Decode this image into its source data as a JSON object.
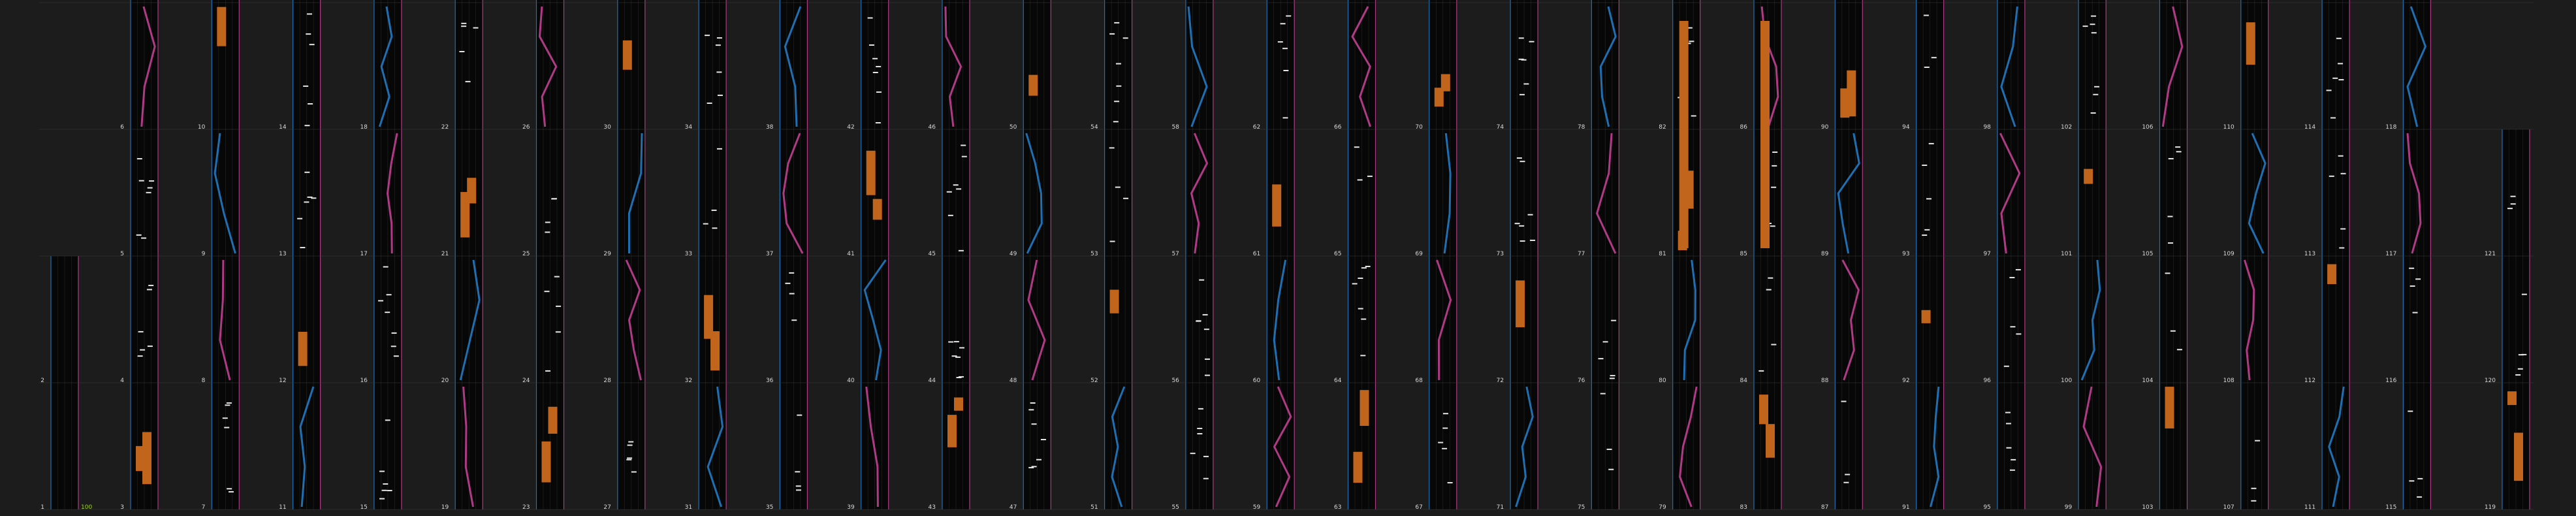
{
  "chart_data": {
    "type": "line",
    "title": "",
    "accent_label": "100",
    "colors": {
      "background": "#1c1c1c",
      "strip": "#070707",
      "grid": "#3a3a3a",
      "edge_blue": "#1f6fb3",
      "edge_pink": "#b03a86",
      "trace_pink": "#b03a86",
      "trace_blue": "#1f6fb3",
      "bar_orange": "#c2651c",
      "tick_white": "#e6e6e6",
      "accent": "#9bd41c"
    },
    "labels": [
      "1",
      "2",
      "3",
      "4",
      "5",
      "6",
      "7",
      "8",
      "9",
      "10",
      "11",
      "12",
      "13",
      "14",
      "15",
      "16",
      "17",
      "18",
      "19",
      "20",
      "21",
      "22",
      "23",
      "24",
      "25",
      "26",
      "27",
      "28",
      "29",
      "30",
      "31",
      "32",
      "33",
      "34",
      "35",
      "36",
      "37",
      "38",
      "39",
      "40",
      "41",
      "42",
      "43",
      "44",
      "45",
      "46",
      "47",
      "48",
      "49",
      "50",
      "51",
      "52",
      "53",
      "54",
      "55",
      "56",
      "57",
      "58",
      "59",
      "60",
      "61",
      "62",
      "63",
      "64",
      "65",
      "66",
      "67",
      "68",
      "69",
      "70",
      "71",
      "72",
      "73",
      "74",
      "75",
      "76",
      "77",
      "78",
      "79",
      "80",
      "81",
      "82",
      "83",
      "84",
      "85",
      "86",
      "87",
      "88",
      "89",
      "90",
      "91",
      "92",
      "93",
      "94",
      "95",
      "96",
      "97",
      "98",
      "99",
      "100",
      "101",
      "102",
      "103",
      "104",
      "105",
      "106",
      "107",
      "108",
      "109",
      "110",
      "111",
      "112",
      "113",
      "114",
      "115",
      "116",
      "117",
      "118",
      "119",
      "120",
      "121"
    ]
  }
}
